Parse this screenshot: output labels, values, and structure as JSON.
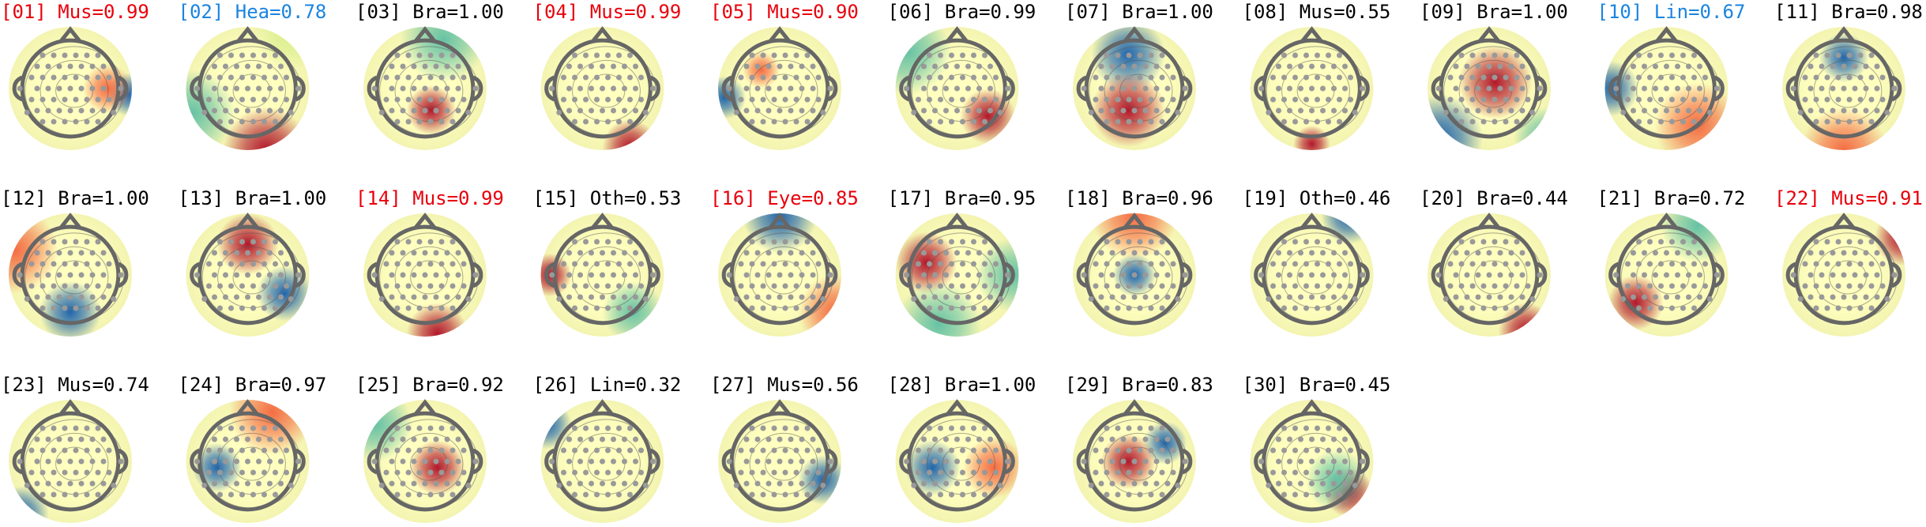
{
  "components": [
    {
      "label": "[01] Mus=0.99",
      "color": "#e8000b"
    },
    {
      "label": "[02] Hea=0.78",
      "color": "#1a84e0"
    },
    {
      "label": "[03] Bra=1.00",
      "color": "#000000"
    },
    {
      "label": "[04] Mus=0.99",
      "color": "#e8000b"
    },
    {
      "label": "[05] Mus=0.90",
      "color": "#e8000b"
    },
    {
      "label": "[06] Bra=0.99",
      "color": "#000000"
    },
    {
      "label": "[07] Bra=1.00",
      "color": "#000000"
    },
    {
      "label": "[08] Mus=0.55",
      "color": "#000000"
    },
    {
      "label": "[09] Bra=1.00",
      "color": "#000000"
    },
    {
      "label": "[10] Lin=0.67",
      "color": "#1a84e0"
    },
    {
      "label": "[11] Bra=0.98",
      "color": "#000000"
    },
    {
      "label": "[12] Bra=1.00",
      "color": "#000000"
    },
    {
      "label": "[13] Bra=1.00",
      "color": "#000000"
    },
    {
      "label": "[14] Mus=0.99",
      "color": "#e8000b"
    },
    {
      "label": "[15] Oth=0.53",
      "color": "#000000"
    },
    {
      "label": "[16] Eye=0.85",
      "color": "#e8000b"
    },
    {
      "label": "[17] Bra=0.95",
      "color": "#000000"
    },
    {
      "label": "[18] Bra=0.96",
      "color": "#000000"
    },
    {
      "label": "[19] Oth=0.46",
      "color": "#000000"
    },
    {
      "label": "[20] Bra=0.44",
      "color": "#000000"
    },
    {
      "label": "[21] Bra=0.72",
      "color": "#000000"
    },
    {
      "label": "[22] Mus=0.91",
      "color": "#e8000b"
    },
    {
      "label": "[23] Mus=0.74",
      "color": "#000000"
    },
    {
      "label": "[24] Bra=0.97",
      "color": "#000000"
    },
    {
      "label": "[25] Bra=0.92",
      "color": "#000000"
    },
    {
      "label": "[26] Lin=0.32",
      "color": "#000000"
    },
    {
      "label": "[27] Mus=0.56",
      "color": "#000000"
    },
    {
      "label": "[28] Bra=1.00",
      "color": "#000000"
    },
    {
      "label": "[29] Bra=0.83",
      "color": "#000000"
    },
    {
      "label": "[30] Bra=0.45",
      "color": "#000000"
    }
  ]
}
